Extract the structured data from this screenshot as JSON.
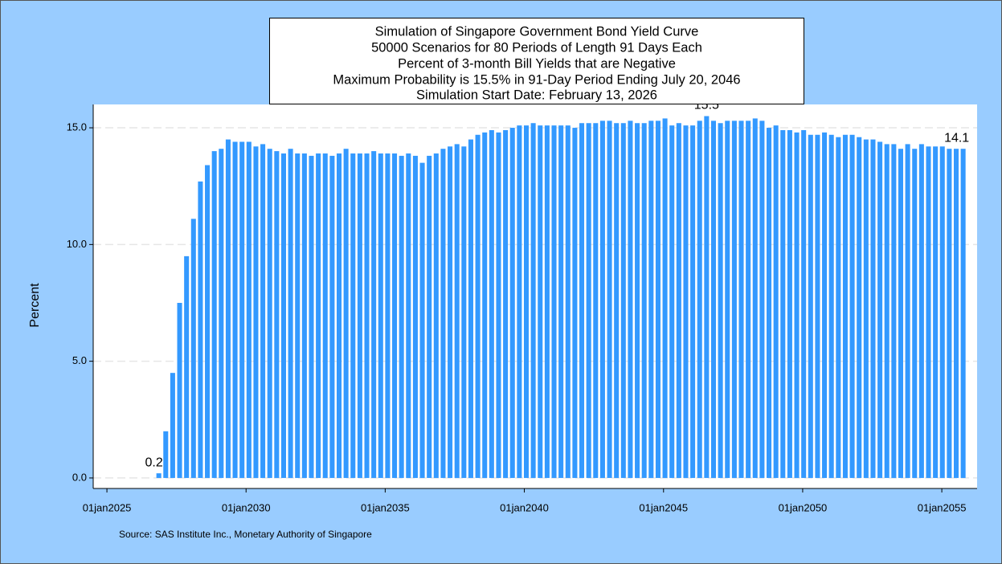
{
  "chart_data": {
    "type": "bar",
    "title": [
      "Simulation of Singapore Government Bond Yield Curve",
      "50000 Scenarios for 80 Periods of Length 91 Days Each",
      "Percent of 3-month Bill Yields that are Negative",
      "Maximum Probability is 15.5% in 91-Day Period Ending July 20, 2046",
      "Simulation Start Date: February 13, 2026"
    ],
    "y_label": "Percent",
    "source": "Source: SAS Institute Inc., Monetary Authority of Singapore",
    "color": "#3399ff",
    "grid": true,
    "xlim": [
      "2024-07-05",
      "2056-04-08"
    ],
    "xticks": [
      {
        "value": "2025-01-01",
        "label": "01jan2025"
      },
      {
        "value": "2030-01-01",
        "label": "01jan2030"
      },
      {
        "value": "2035-01-01",
        "label": "01jan2035"
      },
      {
        "value": "2040-01-01",
        "label": "01jan2040"
      },
      {
        "value": "2045-01-01",
        "label": "01jan2045"
      },
      {
        "value": "2050-01-01",
        "label": "01jan2050"
      },
      {
        "value": "2055-01-01",
        "label": "01jan2055"
      }
    ],
    "ylim": [
      -0.45,
      16.0
    ],
    "yticks": [
      {
        "value": 0,
        "label": "0.0"
      },
      {
        "value": 5,
        "label": "5.0"
      },
      {
        "value": 10,
        "label": "10.0"
      },
      {
        "value": 15,
        "label": "15.0"
      }
    ],
    "x": [
      "2026-11-13",
      "2027-02-12",
      "2027-05-14",
      "2027-08-13",
      "2027-11-12",
      "2028-02-11",
      "2028-05-12",
      "2028-08-11",
      "2028-11-10",
      "2029-02-09",
      "2029-05-11",
      "2029-08-10",
      "2029-11-09",
      "2030-02-08",
      "2030-05-10",
      "2030-08-09",
      "2030-11-08",
      "2031-02-07",
      "2031-05-09",
      "2031-08-08",
      "2031-11-07",
      "2032-02-06",
      "2032-05-07",
      "2032-08-06",
      "2032-11-05",
      "2033-02-04",
      "2033-05-06",
      "2033-08-05",
      "2033-11-04",
      "2034-02-03",
      "2034-05-05",
      "2034-08-04",
      "2034-11-03",
      "2035-02-02",
      "2035-05-04",
      "2035-08-03",
      "2035-11-02",
      "2036-02-01",
      "2036-05-02",
      "2036-08-01",
      "2036-10-31",
      "2037-01-30",
      "2037-05-01",
      "2037-07-31",
      "2037-10-30",
      "2038-01-29",
      "2038-04-30",
      "2038-07-30",
      "2038-10-29",
      "2039-01-28",
      "2039-04-29",
      "2039-07-29",
      "2039-10-28",
      "2040-01-27",
      "2040-04-27",
      "2040-07-27",
      "2040-10-26",
      "2041-01-25",
      "2041-04-26",
      "2041-07-26",
      "2041-10-25",
      "2042-01-24",
      "2042-04-25",
      "2042-07-25",
      "2042-10-24",
      "2043-01-23",
      "2043-04-24",
      "2043-07-24",
      "2043-10-23",
      "2044-01-22",
      "2044-04-22",
      "2044-07-22",
      "2044-10-21",
      "2045-01-20",
      "2045-04-21",
      "2045-07-21",
      "2045-10-20",
      "2046-01-19",
      "2046-04-20",
      "2046-07-20",
      "2046-10-19",
      "2047-01-18",
      "2047-04-19",
      "2047-07-19",
      "2047-10-18",
      "2048-01-17",
      "2048-04-17",
      "2048-07-17",
      "2048-10-16",
      "2049-01-15",
      "2049-04-16",
      "2049-07-16",
      "2049-10-15",
      "2050-01-14",
      "2050-04-15",
      "2050-07-15",
      "2050-10-14",
      "2051-01-13",
      "2051-04-14",
      "2051-07-14",
      "2051-10-13",
      "2052-01-12",
      "2052-04-12",
      "2052-07-12",
      "2052-10-11",
      "2053-01-10",
      "2053-04-11",
      "2053-07-11",
      "2053-10-10",
      "2054-01-09",
      "2054-04-10",
      "2054-07-10",
      "2054-10-09",
      "2055-01-08",
      "2055-04-09",
      "2055-07-09",
      "2055-10-08"
    ],
    "values": [
      0.2,
      2.0,
      4.5,
      7.5,
      9.5,
      11.1,
      12.7,
      13.4,
      14.0,
      14.1,
      14.5,
      14.4,
      14.4,
      14.4,
      14.2,
      14.3,
      14.1,
      14.0,
      13.9,
      14.1,
      13.9,
      13.9,
      13.8,
      13.9,
      13.9,
      13.8,
      13.9,
      14.1,
      13.9,
      13.9,
      13.9,
      14.0,
      13.9,
      13.9,
      13.9,
      13.8,
      13.9,
      13.8,
      13.5,
      13.8,
      13.9,
      14.1,
      14.2,
      14.3,
      14.2,
      14.5,
      14.7,
      14.8,
      14.9,
      14.8,
      14.9,
      15.0,
      15.1,
      15.1,
      15.2,
      15.1,
      15.1,
      15.1,
      15.1,
      15.1,
      15.0,
      15.2,
      15.2,
      15.2,
      15.3,
      15.3,
      15.2,
      15.2,
      15.3,
      15.2,
      15.2,
      15.3,
      15.3,
      15.4,
      15.1,
      15.2,
      15.1,
      15.1,
      15.3,
      15.5,
      15.3,
      15.2,
      15.3,
      15.3,
      15.3,
      15.3,
      15.4,
      15.3,
      15.0,
      15.1,
      14.9,
      14.9,
      14.8,
      14.9,
      14.7,
      14.7,
      14.8,
      14.7,
      14.6,
      14.7,
      14.7,
      14.6,
      14.5,
      14.5,
      14.4,
      14.3,
      14.3,
      14.1,
      14.3,
      14.1,
      14.3,
      14.2,
      14.2,
      14.2,
      14.1,
      14.1,
      14.1
    ]
  }
}
